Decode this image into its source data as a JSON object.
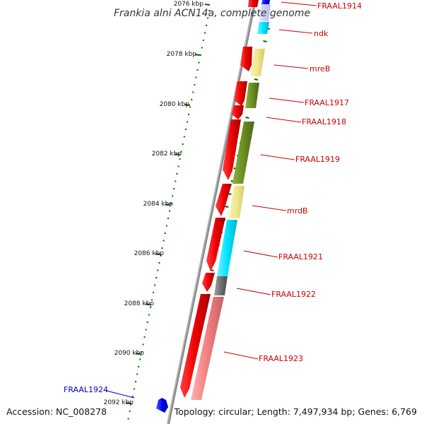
{
  "title": "Frankia alni ACN14a, complete genome",
  "footer": {
    "accession": "Accession: NC_008278",
    "topology": "Topology: circular; Length: 7,497,934 bp; Genes: 6,769"
  },
  "ruler": {
    "ticks": [
      "2076 kbp",
      "2078 kbp",
      "2080 kbp",
      "2082 kbp",
      "2084 kbp",
      "2086 kbp",
      "2088 kbp",
      "2090 kbp",
      "2092 kbp"
    ]
  },
  "genes": [
    {
      "name": "FRAAL1914",
      "color": "#cc0000"
    },
    {
      "name": "ndk",
      "color": "#cc0000"
    },
    {
      "name": "mreB",
      "color": "#cc0000"
    },
    {
      "name": "FRAAL1917",
      "color": "#cc0000"
    },
    {
      "name": "FRAAL1918",
      "color": "#cc0000"
    },
    {
      "name": "FRAAL1919",
      "color": "#cc0000"
    },
    {
      "name": "mrdB",
      "color": "#cc0000"
    },
    {
      "name": "FRAAL1921",
      "color": "#cc0000"
    },
    {
      "name": "FRAAL1922",
      "color": "#cc0000"
    },
    {
      "name": "FRAAL1923",
      "color": "#cc0000"
    },
    {
      "name": "FRAAL1924",
      "color": "#0000cc"
    }
  ],
  "colors": {
    "forward_strand": "#ee0000",
    "category_blue": "#0000ee",
    "category_cyan": "#00d8f0",
    "category_khaki": "#f0e68c",
    "category_olive": "#6b8e23",
    "category_gray": "#707070",
    "category_pink": "#f08080",
    "backbone": "#888888",
    "tick": "#006400"
  }
}
